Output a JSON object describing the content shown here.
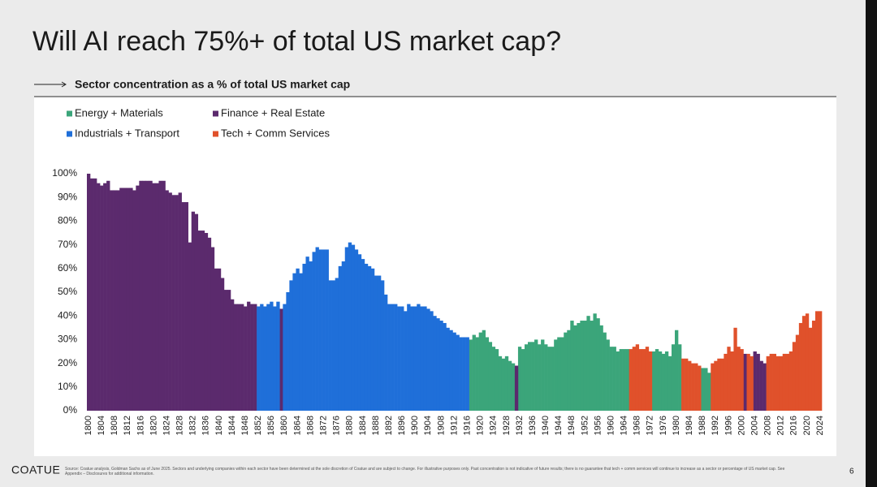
{
  "slide": {
    "title": "Will AI reach 75%+ of total US market cap?",
    "brand": "COATUE",
    "page_number": "6",
    "source": "Source: Coatue analysis, Goldman Sachs as of June 2025. Sectors and underlying companies within each sector have been determined at the sole discretion of Coatue and are subject to change. For illustrative purposes only. Past concentration is not indicative of future results; there is no guarantee that tech + comm services will continue to increase as a sector or percentage of US market cap. See Appendix – Disclosures for additional information."
  },
  "chart_data": {
    "type": "bar",
    "title": "Sector concentration as a % of total US market cap",
    "xlim": [
      1800,
      2024
    ],
    "ylim": [
      0,
      100
    ],
    "yticks": [
      {
        "value": 0,
        "label": "0%"
      },
      {
        "value": 10,
        "label": "10%"
      },
      {
        "value": 20,
        "label": "20%"
      },
      {
        "value": 30,
        "label": "30%"
      },
      {
        "value": 40,
        "label": "40%"
      },
      {
        "value": 50,
        "label": "50%"
      },
      {
        "value": 60,
        "label": "60%"
      },
      {
        "value": 70,
        "label": "70%"
      },
      {
        "value": 80,
        "label": "80%"
      },
      {
        "value": 90,
        "label": "90%"
      },
      {
        "value": 100,
        "label": "100%"
      }
    ],
    "xticks": [
      1800,
      1804,
      1808,
      1812,
      1816,
      1820,
      1824,
      1828,
      1832,
      1836,
      1840,
      1844,
      1848,
      1852,
      1856,
      1860,
      1864,
      1868,
      1872,
      1876,
      1880,
      1884,
      1888,
      1892,
      1896,
      1900,
      1904,
      1908,
      1912,
      1916,
      1920,
      1924,
      1928,
      1932,
      1936,
      1940,
      1944,
      1948,
      1952,
      1956,
      1960,
      1964,
      1968,
      1972,
      1976,
      1980,
      1984,
      1988,
      1992,
      1996,
      2000,
      2004,
      2008,
      2012,
      2016,
      2020,
      2024
    ],
    "series": [
      {
        "name": "Energy + Materials",
        "color": "#3ba57a",
        "x": [
          1917,
          1918,
          1919,
          1920,
          1921,
          1922,
          1923,
          1924,
          1925,
          1926,
          1927,
          1928,
          1929,
          1930,
          1932,
          1933,
          1934,
          1935,
          1936,
          1937,
          1938,
          1939,
          1940,
          1941,
          1942,
          1943,
          1944,
          1945,
          1946,
          1947,
          1948,
          1949,
          1950,
          1951,
          1952,
          1953,
          1954,
          1955,
          1956,
          1957,
          1958,
          1959,
          1960,
          1961,
          1962,
          1963,
          1964,
          1965,
          1973,
          1974,
          1975,
          1976,
          1977,
          1978,
          1979,
          1980,
          1981,
          1988,
          1989,
          1990
        ],
        "values": [
          30,
          32,
          31,
          33,
          34,
          31,
          29,
          27,
          26,
          23,
          22,
          23,
          21,
          20,
          27,
          26,
          28,
          29,
          29,
          30,
          28,
          30,
          28,
          27,
          27,
          30,
          31,
          31,
          33,
          34,
          38,
          36,
          37,
          38,
          38,
          40,
          38,
          41,
          39,
          36,
          33,
          30,
          27,
          27,
          25,
          26,
          26,
          26,
          25,
          26,
          25,
          24,
          25,
          23,
          28,
          34,
          28,
          18,
          18,
          16
        ]
      },
      {
        "name": "Finance + Real Estate",
        "color": "#5b2a6d",
        "x": [
          1800,
          1801,
          1802,
          1803,
          1804,
          1805,
          1806,
          1807,
          1808,
          1809,
          1810,
          1811,
          1812,
          1813,
          1814,
          1815,
          1816,
          1817,
          1818,
          1819,
          1820,
          1821,
          1822,
          1823,
          1824,
          1825,
          1826,
          1827,
          1828,
          1829,
          1830,
          1831,
          1832,
          1833,
          1834,
          1835,
          1836,
          1837,
          1838,
          1839,
          1840,
          1841,
          1842,
          1843,
          1844,
          1845,
          1846,
          1847,
          1848,
          1849,
          1850,
          1851,
          1859,
          1931,
          2001,
          2004,
          2005,
          2006,
          2007
        ],
        "values": [
          100,
          98,
          98,
          96,
          95,
          96,
          97,
          93,
          93,
          93,
          94,
          94,
          94,
          94,
          93,
          95,
          97,
          97,
          97,
          97,
          96,
          96,
          97,
          97,
          93,
          92,
          91,
          91,
          92,
          88,
          88,
          71,
          84,
          83,
          76,
          76,
          75,
          73,
          69,
          60,
          60,
          56,
          51,
          51,
          47,
          45,
          45,
          45,
          44,
          46,
          45,
          45,
          43,
          19,
          24,
          25,
          24,
          21,
          20
        ]
      },
      {
        "name": "Industrials + Transport",
        "color": "#1f6fd9",
        "x": [
          1852,
          1853,
          1854,
          1855,
          1856,
          1857,
          1858,
          1860,
          1861,
          1862,
          1863,
          1864,
          1865,
          1866,
          1867,
          1868,
          1869,
          1870,
          1871,
          1872,
          1873,
          1874,
          1875,
          1876,
          1877,
          1878,
          1879,
          1880,
          1881,
          1882,
          1883,
          1884,
          1885,
          1886,
          1887,
          1888,
          1889,
          1890,
          1891,
          1892,
          1893,
          1894,
          1895,
          1896,
          1897,
          1898,
          1899,
          1900,
          1901,
          1902,
          1903,
          1904,
          1905,
          1906,
          1907,
          1908,
          1909,
          1910,
          1911,
          1912,
          1913,
          1914,
          1915,
          1916
        ],
        "values": [
          44,
          45,
          44,
          45,
          46,
          44,
          46,
          45,
          50,
          55,
          58,
          60,
          58,
          62,
          65,
          63,
          67,
          69,
          68,
          68,
          68,
          55,
          55,
          56,
          61,
          63,
          69,
          71,
          70,
          68,
          66,
          64,
          62,
          61,
          60,
          57,
          57,
          55,
          49,
          45,
          45,
          45,
          44,
          44,
          42,
          45,
          44,
          44,
          45,
          44,
          44,
          43,
          42,
          40,
          39,
          38,
          37,
          35,
          34,
          33,
          32,
          31,
          31,
          31
        ]
      },
      {
        "name": "Tech + Comm Services",
        "color": "#e0512b",
        "x": [
          1966,
          1967,
          1968,
          1969,
          1970,
          1971,
          1972,
          1982,
          1983,
          1984,
          1985,
          1986,
          1987,
          1991,
          1992,
          1993,
          1994,
          1995,
          1996,
          1997,
          1998,
          1999,
          2000,
          2002,
          2003,
          2008,
          2009,
          2010,
          2011,
          2012,
          2013,
          2014,
          2015,
          2016,
          2017,
          2018,
          2019,
          2020,
          2021,
          2022,
          2023,
          2024
        ],
        "values": [
          26,
          27,
          28,
          26,
          26,
          27,
          25,
          22,
          22,
          21,
          20,
          20,
          19,
          20,
          21,
          22,
          22,
          24,
          27,
          25,
          35,
          27,
          26,
          24,
          23,
          23,
          24,
          24,
          23,
          23,
          24,
          24,
          25,
          29,
          32,
          37,
          40,
          41,
          35,
          38,
          42,
          42
        ]
      }
    ]
  }
}
